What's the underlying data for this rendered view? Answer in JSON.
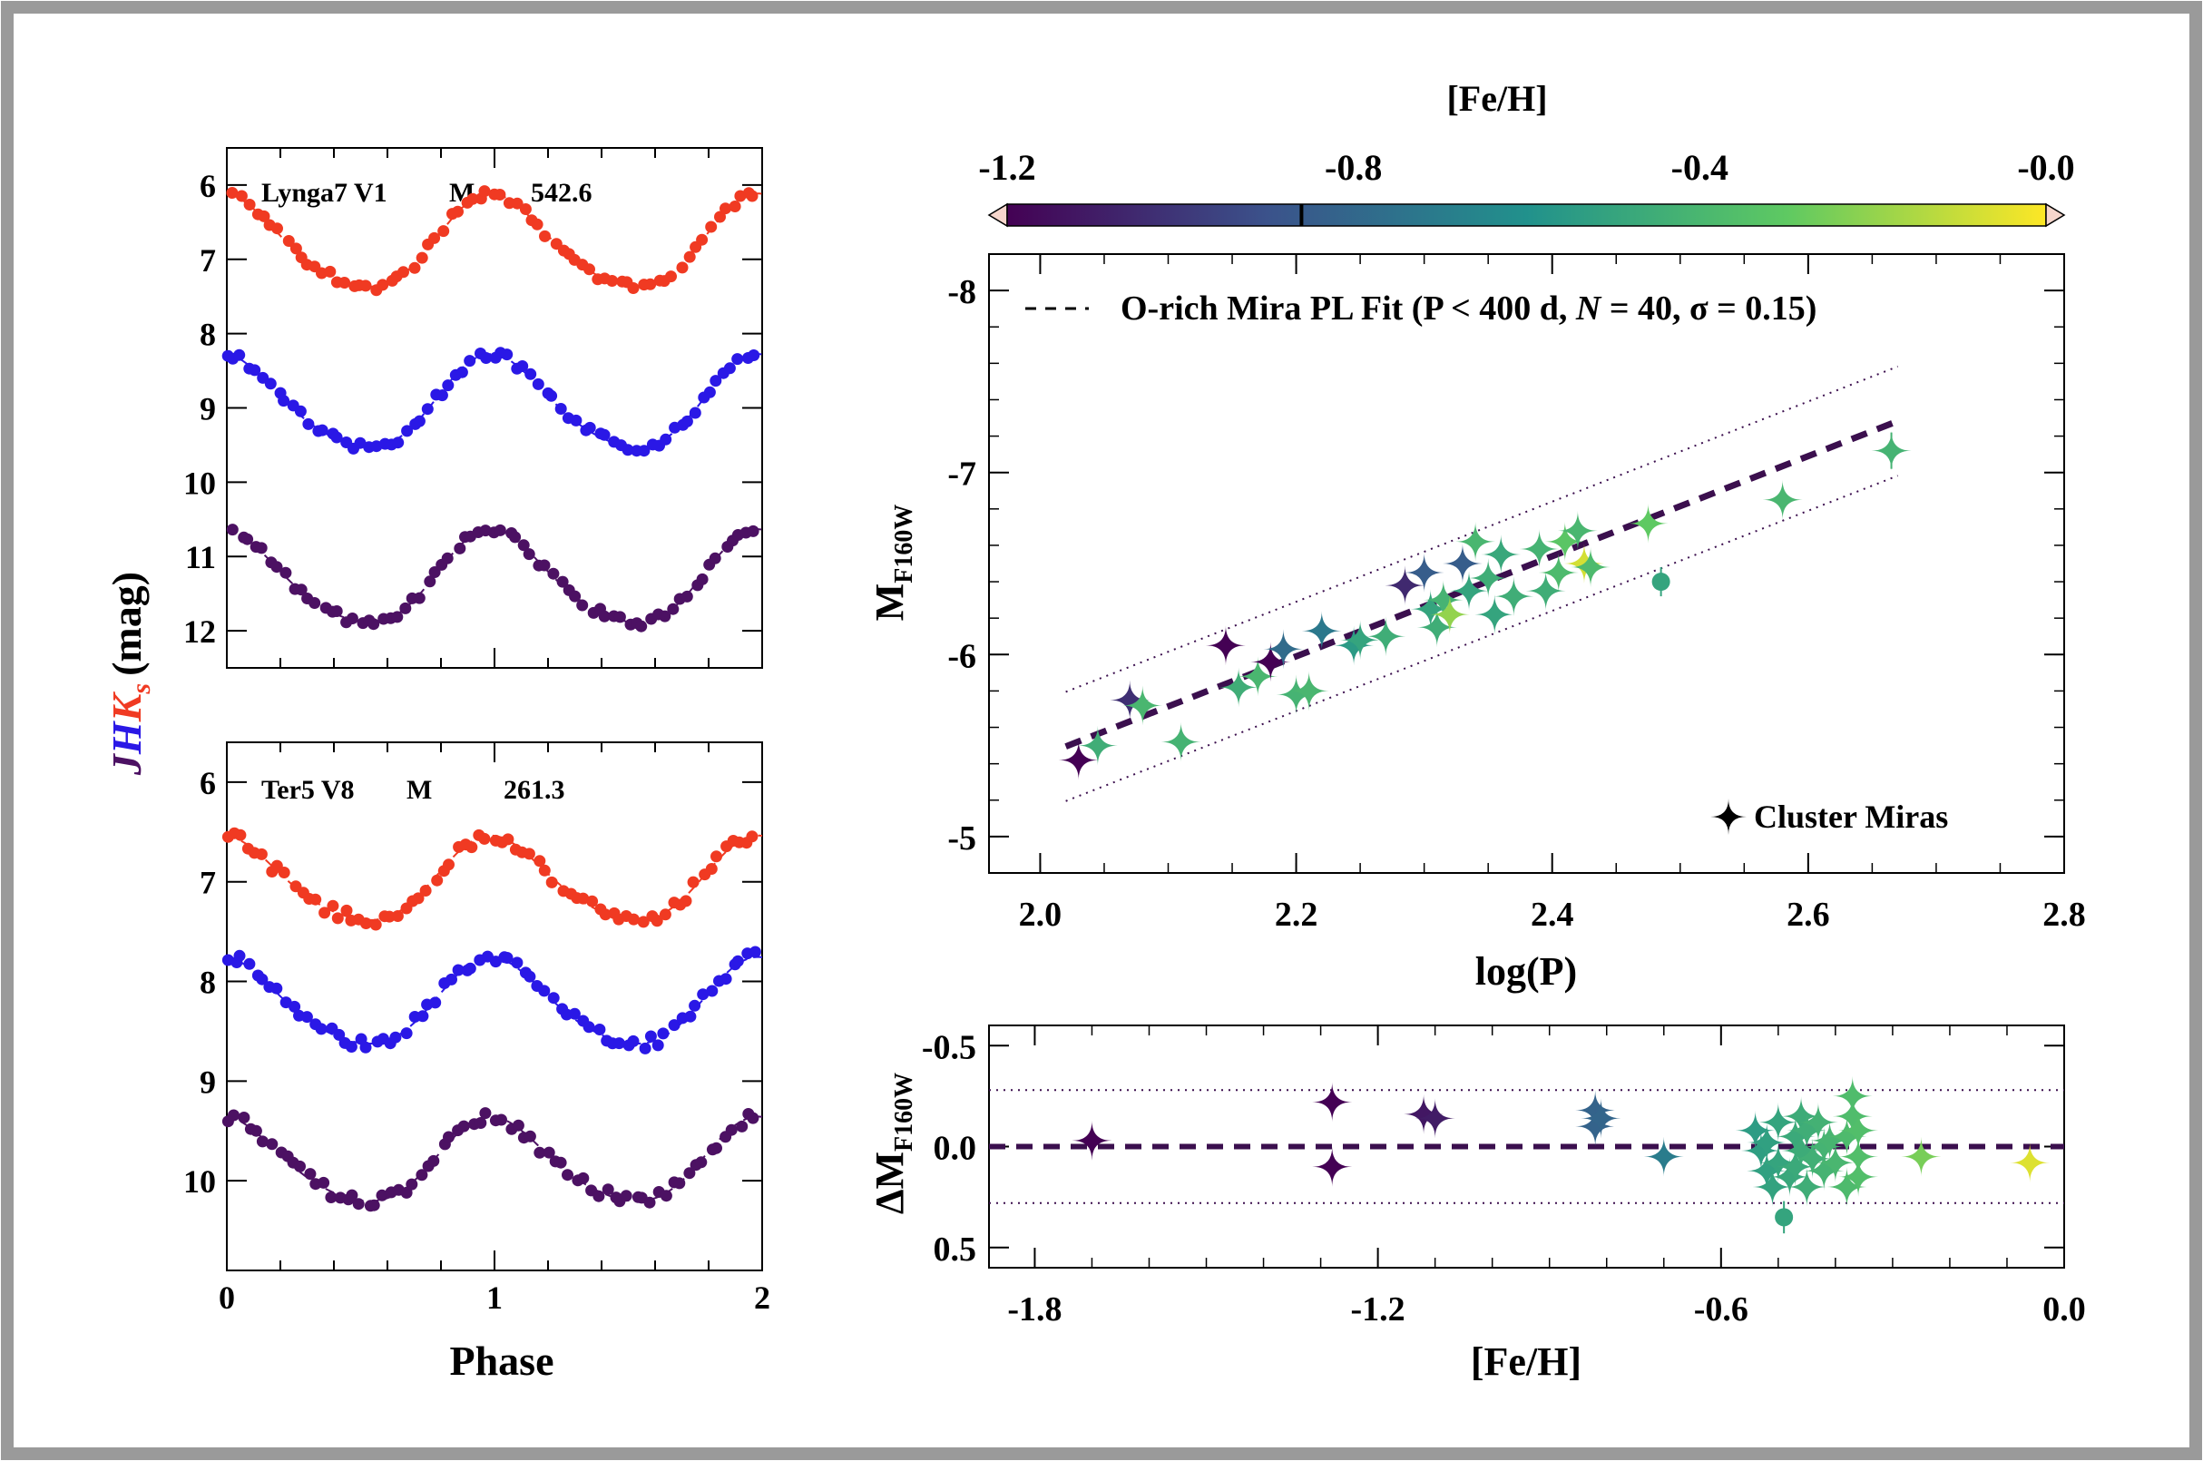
{
  "figure": {
    "left_ylabel_J": "J",
    "left_ylabel_H": "H",
    "left_ylabel_K": "K",
    "left_ylabel_s": "s",
    "left_ylabel_rest": "(mag)",
    "phase_xlabel": "Phase"
  },
  "colors": {
    "J": "#f03a22",
    "H": "#2a18e6",
    "K": "#4c1163",
    "fit_line": "#3b0f4e",
    "frame": "#9a9a9a",
    "colormap": [
      "#440154",
      "#3b528b",
      "#21918c",
      "#5ec962",
      "#fde725"
    ]
  },
  "chart_data": [
    {
      "type": "line",
      "id": "lyngas",
      "label_star": "Lynga7 V1",
      "label_type": "M",
      "label_period": "542.6",
      "xlim": [
        0,
        2
      ],
      "ylim": [
        12.5,
        5.5
      ],
      "yticks": [
        6,
        7,
        8,
        9,
        10,
        11,
        12
      ],
      "xticks": [
        0,
        1,
        2
      ],
      "series": [
        {
          "name": "J",
          "mean": 6.8,
          "amp": 0.62,
          "phase_max": 0.0
        },
        {
          "name": "H",
          "mean": 8.96,
          "amp": 0.62,
          "phase_max": 0.0
        },
        {
          "name": "Ks",
          "mean": 11.32,
          "amp": 0.62,
          "phase_max": 0.0
        }
      ]
    },
    {
      "type": "line",
      "id": "ter5",
      "label_star": "Ter5 V8",
      "label_type": "M",
      "label_period": "261.3",
      "xlim": [
        0,
        2
      ],
      "ylim": [
        10.9,
        5.6
      ],
      "yticks": [
        6,
        7,
        8,
        9,
        10
      ],
      "xticks": [
        0,
        1,
        2
      ],
      "xticklabels": [
        "0",
        "1",
        "2"
      ],
      "xlabel": "Phase",
      "series": [
        {
          "name": "J",
          "mean": 7.0,
          "amp": 0.42,
          "phase_max": 0.0
        },
        {
          "name": "H",
          "mean": 8.23,
          "amp": 0.43,
          "phase_max": 0.0
        },
        {
          "name": "Ks",
          "mean": 9.82,
          "amp": 0.42,
          "phase_max": 0.0
        }
      ]
    },
    {
      "type": "colorbar",
      "title": "[Fe/H]",
      "range": [
        -1.2,
        0.0
      ],
      "ticks": [
        -1.2,
        -0.8,
        -0.4,
        0.0
      ],
      "ticklabels": [
        "-1.2",
        "-0.8",
        "-0.4",
        "-0.0"
      ],
      "marker_value": -0.86
    },
    {
      "type": "scatter",
      "id": "pl",
      "xlabel": "log(P)",
      "ylabel_main": "M",
      "ylabel_sub": "F160W",
      "xlim": [
        1.96,
        2.8
      ],
      "ylim": [
        -4.8,
        -8.2
      ],
      "xticks": [
        2.0,
        2.2,
        2.4,
        2.6,
        2.8
      ],
      "xticklabels": [
        "2.0",
        "2.2",
        "2.4",
        "2.6",
        "2.8"
      ],
      "yticks": [
        -5,
        -6,
        -7,
        -8
      ],
      "yticklabels": [
        "-5",
        "-6",
        "-7",
        "-8"
      ],
      "legend_fit": "O-rich Mira PL Fit (P < 400 d, ",
      "legend_N": "N",
      "legend_fit_end": " = 40,  σ = 0.15)",
      "legend_points": "Cluster Miras",
      "fit": {
        "slope": -2.75,
        "intercept": 0.06,
        "x_range": [
          2.02,
          2.67
        ],
        "sigma_offset": 0.3
      },
      "points": [
        {
          "x": 2.03,
          "y": -5.42,
          "feh": -1.7,
          "m": "star"
        },
        {
          "x": 2.045,
          "y": -5.5,
          "feh": -0.45,
          "m": "star"
        },
        {
          "x": 2.07,
          "y": -5.75,
          "feh": -1.03,
          "m": "star"
        },
        {
          "x": 2.08,
          "y": -5.72,
          "feh": -0.4,
          "m": "star"
        },
        {
          "x": 2.11,
          "y": -5.52,
          "feh": -0.42,
          "m": "star"
        },
        {
          "x": 2.145,
          "y": -6.05,
          "feh": -1.28,
          "m": "star"
        },
        {
          "x": 2.155,
          "y": -5.82,
          "feh": -0.45,
          "m": "star"
        },
        {
          "x": 2.17,
          "y": -5.88,
          "feh": -0.4,
          "m": "star"
        },
        {
          "x": 2.18,
          "y": -5.96,
          "feh": -1.28,
          "m": "star"
        },
        {
          "x": 2.19,
          "y": -6.03,
          "feh": -0.78,
          "m": "star"
        },
        {
          "x": 2.2,
          "y": -5.78,
          "feh": -0.42,
          "m": "star"
        },
        {
          "x": 2.21,
          "y": -5.8,
          "feh": -0.4,
          "m": "star"
        },
        {
          "x": 2.22,
          "y": -6.13,
          "feh": -0.72,
          "m": "star"
        },
        {
          "x": 2.245,
          "y": -6.05,
          "feh": -0.55,
          "m": "star"
        },
        {
          "x": 2.25,
          "y": -6.08,
          "feh": -0.5,
          "m": "star"
        },
        {
          "x": 2.27,
          "y": -6.1,
          "feh": -0.45,
          "m": "star"
        },
        {
          "x": 2.285,
          "y": -6.38,
          "feh": -1.05,
          "m": "star"
        },
        {
          "x": 2.3,
          "y": -6.45,
          "feh": -0.85,
          "m": "star"
        },
        {
          "x": 2.305,
          "y": -6.25,
          "feh": -0.5,
          "m": "star"
        },
        {
          "x": 2.31,
          "y": -6.15,
          "feh": -0.45,
          "m": "star"
        },
        {
          "x": 2.315,
          "y": -6.3,
          "feh": -0.42,
          "m": "star"
        },
        {
          "x": 2.32,
          "y": -6.22,
          "feh": -0.2,
          "m": "star"
        },
        {
          "x": 2.33,
          "y": -6.5,
          "feh": -0.85,
          "m": "star"
        },
        {
          "x": 2.335,
          "y": -6.35,
          "feh": -0.5,
          "m": "star"
        },
        {
          "x": 2.34,
          "y": -6.62,
          "feh": -0.4,
          "m": "star"
        },
        {
          "x": 2.35,
          "y": -6.42,
          "feh": -0.45,
          "m": "star"
        },
        {
          "x": 2.355,
          "y": -6.22,
          "feh": -0.5,
          "m": "star"
        },
        {
          "x": 2.36,
          "y": -6.55,
          "feh": -0.48,
          "m": "star"
        },
        {
          "x": 2.37,
          "y": -6.32,
          "feh": -0.45,
          "m": "star"
        },
        {
          "x": 2.39,
          "y": -6.58,
          "feh": -0.42,
          "m": "star"
        },
        {
          "x": 2.395,
          "y": -6.35,
          "feh": -0.45,
          "m": "star"
        },
        {
          "x": 2.405,
          "y": -6.45,
          "feh": -0.38,
          "m": "star"
        },
        {
          "x": 2.41,
          "y": -6.62,
          "feh": -0.32,
          "m": "star"
        },
        {
          "x": 2.42,
          "y": -6.68,
          "feh": -0.4,
          "m": "star"
        },
        {
          "x": 2.425,
          "y": -6.5,
          "feh": -0.08,
          "m": "star"
        },
        {
          "x": 2.43,
          "y": -6.48,
          "feh": -0.38,
          "m": "star"
        },
        {
          "x": 2.475,
          "y": -6.72,
          "feh": -0.3,
          "m": "star"
        },
        {
          "x": 2.485,
          "y": -6.4,
          "feh": -0.5,
          "m": "circle",
          "err": 0.08
        },
        {
          "x": 2.58,
          "y": -6.85,
          "feh": -0.4,
          "m": "star"
        },
        {
          "x": 2.665,
          "y": -7.12,
          "feh": -0.42,
          "m": "star",
          "err": 0.1
        }
      ]
    },
    {
      "type": "scatter",
      "id": "resid",
      "xlabel": "[Fe/H]",
      "ylabel_main": "ΔM",
      "ylabel_sub": "F160W",
      "xlim": [
        -1.88,
        0.0
      ],
      "ylim": [
        -0.6,
        0.6
      ],
      "xticks": [
        -1.8,
        -1.2,
        -0.6,
        0.0
      ],
      "xticklabels": [
        "-1.8",
        "-1.2",
        "-0.6",
        "0.0"
      ],
      "yticks": [
        -0.5,
        0.0,
        0.5
      ],
      "yticklabels": [
        "-0.5",
        "0.0",
        "0.5"
      ],
      "sigma_lines": [
        -0.28,
        0.28
      ],
      "points": [
        {
          "x": -1.7,
          "y": -0.03,
          "feh": -1.7,
          "m": "star"
        },
        {
          "x": -1.28,
          "y": -0.22,
          "feh": -1.28,
          "m": "star"
        },
        {
          "x": -1.28,
          "y": 0.1,
          "feh": -1.28,
          "m": "star"
        },
        {
          "x": -1.12,
          "y": -0.16,
          "feh": -1.12,
          "m": "star"
        },
        {
          "x": -1.1,
          "y": -0.14,
          "feh": -1.1,
          "m": "star"
        },
        {
          "x": -0.82,
          "y": -0.18,
          "feh": -0.82,
          "m": "star"
        },
        {
          "x": -0.82,
          "y": -0.1,
          "feh": -0.82,
          "m": "star"
        },
        {
          "x": -0.81,
          "y": -0.14,
          "feh": -0.81,
          "m": "star"
        },
        {
          "x": -0.7,
          "y": 0.05,
          "feh": -0.7,
          "m": "star"
        },
        {
          "x": -0.54,
          "y": -0.08,
          "feh": -0.54,
          "m": "star"
        },
        {
          "x": -0.53,
          "y": 0.02,
          "feh": -0.53,
          "m": "star"
        },
        {
          "x": -0.52,
          "y": 0.12,
          "feh": -0.52,
          "m": "star"
        },
        {
          "x": -0.52,
          "y": -0.02,
          "feh": -0.52,
          "m": "star"
        },
        {
          "x": -0.51,
          "y": 0.2,
          "feh": -0.51,
          "m": "star"
        },
        {
          "x": -0.5,
          "y": -0.12,
          "feh": -0.5,
          "m": "star"
        },
        {
          "x": -0.5,
          "y": 0.08,
          "feh": -0.5,
          "m": "star"
        },
        {
          "x": -0.49,
          "y": 0.35,
          "feh": -0.5,
          "m": "circle",
          "err": 0.08
        },
        {
          "x": -0.48,
          "y": 0.15,
          "feh": -0.48,
          "m": "star"
        },
        {
          "x": -0.47,
          "y": -0.05,
          "feh": -0.47,
          "m": "star"
        },
        {
          "x": -0.47,
          "y": 0.1,
          "feh": -0.47,
          "m": "star"
        },
        {
          "x": -0.46,
          "y": -0.15,
          "feh": -0.46,
          "m": "star"
        },
        {
          "x": -0.46,
          "y": 0.02,
          "feh": -0.46,
          "m": "star"
        },
        {
          "x": -0.45,
          "y": 0.2,
          "feh": -0.45,
          "m": "star"
        },
        {
          "x": -0.45,
          "y": -0.08,
          "feh": -0.45,
          "m": "star"
        },
        {
          "x": -0.44,
          "y": 0.06,
          "feh": -0.44,
          "m": "star"
        },
        {
          "x": -0.43,
          "y": -0.12,
          "feh": -0.43,
          "m": "star"
        },
        {
          "x": -0.42,
          "y": 0.12,
          "feh": -0.42,
          "m": "star"
        },
        {
          "x": -0.42,
          "y": 0.0,
          "feh": -0.42,
          "m": "star"
        },
        {
          "x": -0.41,
          "y": -0.03,
          "feh": -0.41,
          "m": "star"
        },
        {
          "x": -0.4,
          "y": 0.08,
          "feh": -0.4,
          "m": "star"
        },
        {
          "x": -0.38,
          "y": 0.2,
          "feh": -0.38,
          "m": "star"
        },
        {
          "x": -0.38,
          "y": -0.05,
          "feh": -0.38,
          "m": "star"
        },
        {
          "x": -0.37,
          "y": -0.25,
          "feh": -0.37,
          "m": "star"
        },
        {
          "x": -0.37,
          "y": -0.15,
          "feh": -0.37,
          "m": "star"
        },
        {
          "x": -0.36,
          "y": 0.15,
          "feh": -0.36,
          "m": "star"
        },
        {
          "x": -0.36,
          "y": 0.05,
          "feh": -0.36,
          "m": "star"
        },
        {
          "x": -0.36,
          "y": -0.08,
          "feh": -0.36,
          "m": "star"
        },
        {
          "x": -0.25,
          "y": 0.05,
          "feh": -0.25,
          "m": "star"
        },
        {
          "x": -0.06,
          "y": 0.08,
          "feh": -0.06,
          "m": "star"
        }
      ]
    }
  ]
}
